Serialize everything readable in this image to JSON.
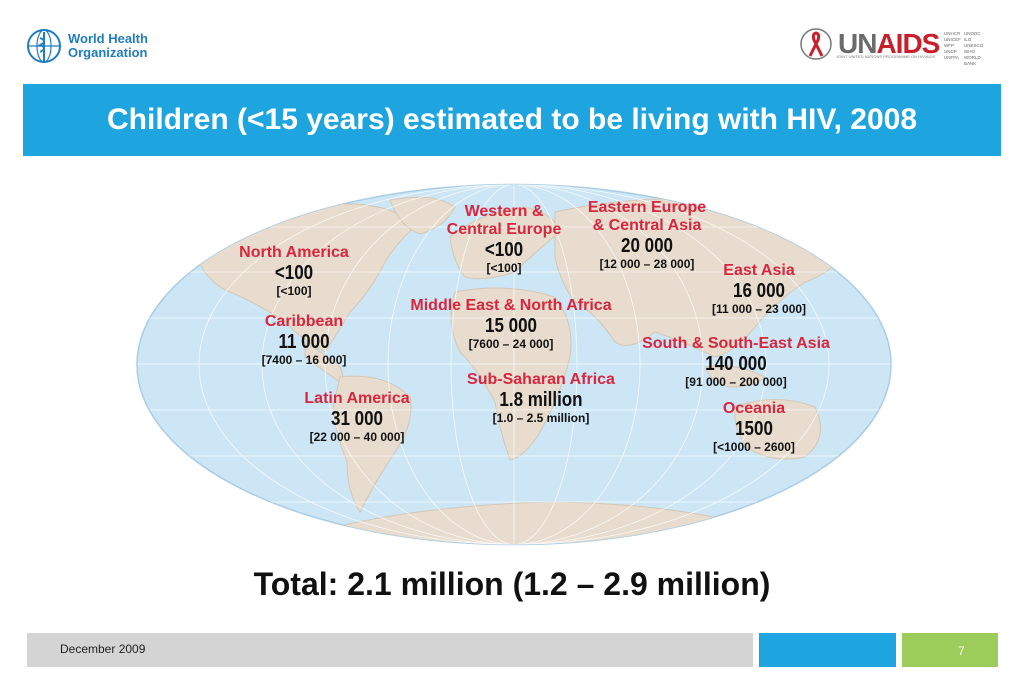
{
  "header": {
    "who_line1": "World Health",
    "who_line2": "Organization",
    "unaids_un": "UN",
    "unaids_aids": "AIDS",
    "unaids_sub": "JOINT UNITED NATIONS PROGRAMME ON HIV/AIDS",
    "cosponsors": [
      "UNHCR",
      "UNICEF",
      "WFP",
      "UNDP",
      "UNFPA",
      "UNODC",
      "ILO",
      "UNESCO",
      "WHO",
      "WORLD BANK"
    ]
  },
  "title": "Children (<15 years) estimated to be living with HIV, 2008",
  "regions": {
    "north_america": {
      "name": "North America",
      "value": "<100",
      "range": "[<100]"
    },
    "caribbean": {
      "name": "Caribbean",
      "value": "11 000",
      "range": "[7400 – 16 000]"
    },
    "latin_america": {
      "name": "Latin America",
      "value": "31 000",
      "range": "[22 000 – 40 000]"
    },
    "western_central_europe": {
      "name_line1": "Western &",
      "name_line2": "Central Europe",
      "value": "<100",
      "range": "[<100]"
    },
    "eastern_europe_central_asia": {
      "name_line1": "Eastern Europe",
      "name_line2": "& Central Asia",
      "value": "20 000",
      "range": "[12 000 – 28 000]"
    },
    "middle_east_north_africa": {
      "name": "Middle East & North Africa",
      "value": "15 000",
      "range": "[7600 – 24 000]"
    },
    "sub_saharan_africa": {
      "name": "Sub-Saharan Africa",
      "value": "1.8 million",
      "range": "[1.0 – 2.5 million]"
    },
    "east_asia": {
      "name": "East Asia",
      "value": "16 000",
      "range": "[11 000 – 23 000]"
    },
    "south_southeast_asia": {
      "name": "South & South-East Asia",
      "value": "140 000",
      "range": "[91 000 – 200 000]"
    },
    "oceania": {
      "name": "Oceania",
      "value": "1500",
      "range": "[<1000 – 2600]"
    }
  },
  "total": "Total: 2.1 million (1.2 – 2.9 million)",
  "footer": {
    "date": "December 2009",
    "page": "7"
  },
  "colors": {
    "title_bar": "#1ea5e0",
    "region_name": "#d7263d",
    "ocean": "#cde6f6",
    "land": "#e7dccd",
    "footer_green": "#9ccc5a"
  }
}
